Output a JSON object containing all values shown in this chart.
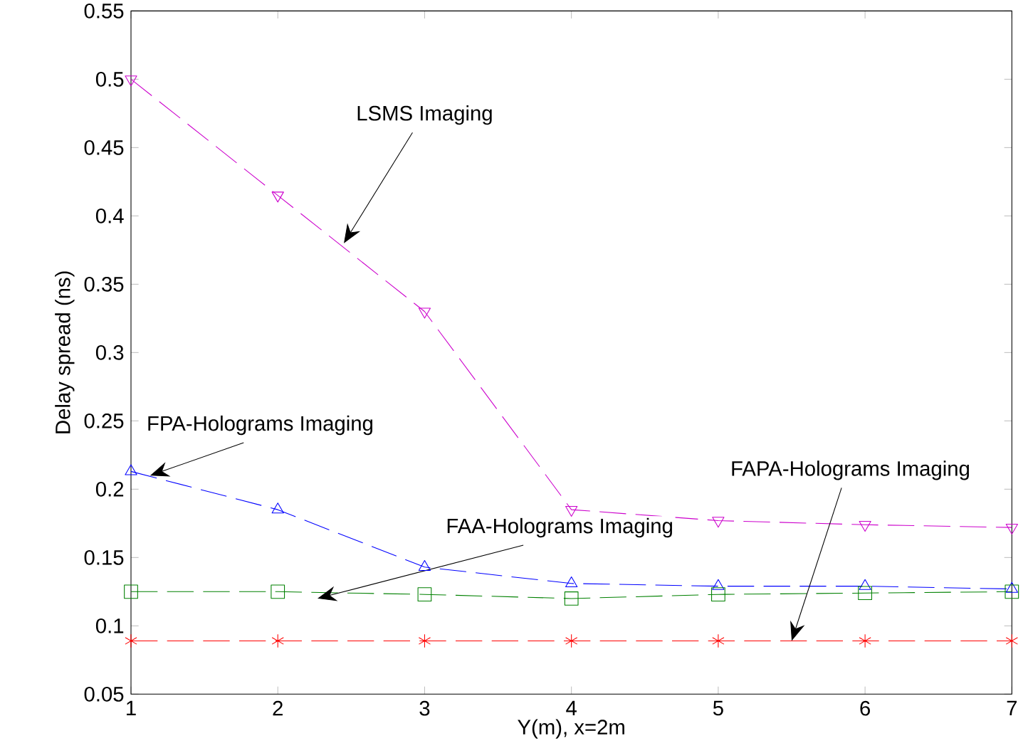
{
  "chart_data": {
    "type": "line",
    "xlabel": "Y(m), x=2m",
    "ylabel": "Delay spread (ns)",
    "x": [
      1,
      2,
      3,
      4,
      5,
      6,
      7
    ],
    "xlim": [
      1,
      7
    ],
    "xticks": [
      1,
      2,
      3,
      4,
      5,
      6,
      7
    ],
    "ylim": [
      0.05,
      0.55
    ],
    "yticks": [
      0.05,
      0.1,
      0.15,
      0.2,
      0.25,
      0.3,
      0.35,
      0.4,
      0.45,
      0.5,
      0.55
    ],
    "grid": false,
    "line_style": "dashed",
    "series": [
      {
        "color": "#cc00cc",
        "marker": "triangle_down",
        "values": [
          0.5,
          0.415,
          0.33,
          0.185,
          0.177,
          0.174,
          0.172
        ]
      },
      {
        "color": "#0000ff",
        "marker": "triangle",
        "values": [
          0.213,
          0.185,
          0.143,
          0.131,
          0.129,
          0.129,
          0.127
        ]
      },
      {
        "color": "#008000",
        "marker": "square",
        "values": [
          0.125,
          0.125,
          0.123,
          0.12,
          0.123,
          0.124,
          0.125
        ]
      },
      {
        "color": "#ff0000",
        "marker": "cross",
        "values": [
          0.089,
          0.089,
          0.089,
          0.089,
          0.089,
          0.089,
          0.089
        ]
      }
    ],
    "annotations": [
      {
        "text": "LSMS Imaging",
        "x": 2.45,
        "y": 0.38
      },
      {
        "text": "FPA-Holograms Imaging",
        "x": 1.13,
        "y": 0.21
      },
      {
        "text": "FAA-Holograms Imaging",
        "x": 2.27,
        "y": 0.12
      },
      {
        "text": "FAPA-Holograms Imaging",
        "x": 5.5,
        "y": 0.089
      }
    ]
  }
}
